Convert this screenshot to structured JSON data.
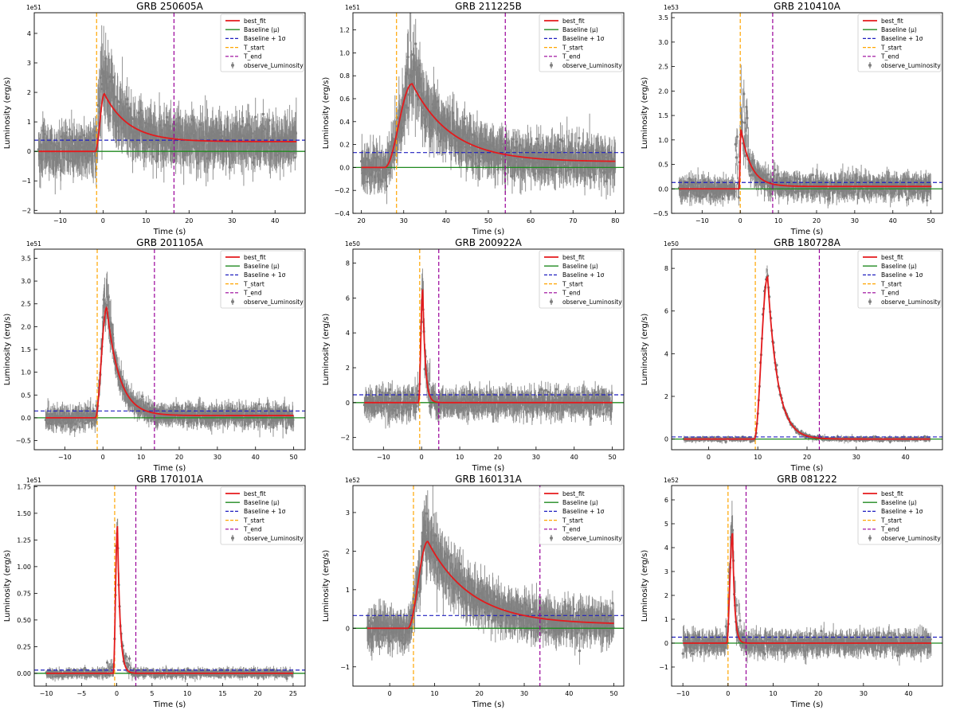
{
  "colors": {
    "best_fit": "#e41a1c",
    "baseline": "#1f8a1f",
    "baseline_sigma": "#1f1fbf",
    "t_start": "#ffa500",
    "t_end": "#990099",
    "observed": "#808080"
  },
  "legend": {
    "best_fit": "best_fit",
    "baseline": "Baseline (μ)",
    "baseline_sigma": "Baseline + 1σ",
    "t_start": "T_start",
    "t_end": "T_end",
    "observed": "observe_Luminosity"
  },
  "chart_data": [
    {
      "type": "scatter",
      "title": "GRB 250605A",
      "xlabel": "Time (s)",
      "ylabel": "Luminosity (erg/s)",
      "scale_label": "1e51",
      "xlim": [
        -16,
        47
      ],
      "ylim": [
        -2.1,
        4.7
      ],
      "xticks": [
        -10,
        0,
        10,
        20,
        30,
        40
      ],
      "yticks": [
        -2,
        -1,
        0,
        1,
        2,
        3,
        4
      ],
      "baseline": 0.0,
      "baseline_sigma": 0.38,
      "t_start": -1.5,
      "t_end": 16.5,
      "peak": 1.95,
      "t_peak": 0.3,
      "tail": 0.33,
      "decay_k": 1.0,
      "noise": 0.55,
      "data_peak": 4.4,
      "data_range": [
        -15,
        45
      ],
      "fit_start": -1.8
    },
    {
      "type": "scatter",
      "title": "GRB 211225B",
      "xlabel": "Time (s)",
      "ylabel": "Luminosity (erg/s)",
      "scale_label": "1e51",
      "xlim": [
        18,
        82
      ],
      "ylim": [
        -0.4,
        1.35
      ],
      "xticks": [
        20,
        30,
        40,
        50,
        60,
        70,
        80
      ],
      "yticks": [
        -0.4,
        -0.2,
        0.0,
        0.2,
        0.4,
        0.6,
        0.8,
        1.0,
        1.2
      ],
      "baseline": 0.0,
      "baseline_sigma": 0.13,
      "t_start": 28.3,
      "t_end": 54.0,
      "peak": 0.73,
      "t_peak": 32.0,
      "tail": 0.05,
      "decay_k": 1.2,
      "noise": 0.13,
      "data_peak": 1.22,
      "data_range": [
        20,
        80
      ],
      "fit_start": 25.5
    },
    {
      "type": "scatter",
      "title": "GRB 210410A",
      "xlabel": "Time (s)",
      "ylabel": "Luminosity (erg/s)",
      "scale_label": "1e53",
      "xlim": [
        -18,
        53
      ],
      "ylim": [
        -0.5,
        3.6
      ],
      "xticks": [
        -10,
        0,
        10,
        20,
        30,
        40,
        50
      ],
      "yticks": [
        -0.5,
        0.0,
        0.5,
        1.0,
        1.5,
        2.0,
        2.5,
        3.0,
        3.5
      ],
      "baseline": 0.0,
      "baseline_sigma": 0.13,
      "t_start": 0.0,
      "t_end": 8.5,
      "peak": 1.22,
      "t_peak": 0.2,
      "tail": 0.05,
      "decay_k": 0.9,
      "noise": 0.17,
      "data_peak": 2.95,
      "data_range": [
        -16,
        50
      ],
      "fit_start": -0.3
    },
    {
      "type": "scatter",
      "title": "GRB 201105A",
      "xlabel": "Time (s)",
      "ylabel": "Luminosity (erg/s)",
      "scale_label": "1e51",
      "xlim": [
        -18,
        53
      ],
      "ylim": [
        -0.7,
        3.7
      ],
      "xticks": [
        -10,
        0,
        10,
        20,
        30,
        40,
        50
      ],
      "yticks": [
        -0.5,
        0.0,
        0.5,
        1.0,
        1.5,
        2.0,
        2.5,
        3.0,
        3.5
      ],
      "baseline": 0.0,
      "baseline_sigma": 0.15,
      "t_start": -1.5,
      "t_end": 13.5,
      "peak": 2.42,
      "t_peak": 1.0,
      "tail": 0.05,
      "decay_k": 0.75,
      "noise": 0.17,
      "data_peak": 3.4,
      "data_range": [
        -15,
        50
      ],
      "fit_start": -2.0
    },
    {
      "type": "scatter",
      "title": "GRB 200922A",
      "xlabel": "Time (s)",
      "ylabel": "Luminosity (erg/s)",
      "scale_label": "1e50",
      "xlim": [
        -18,
        53
      ],
      "ylim": [
        -2.7,
        8.8
      ],
      "xticks": [
        -10,
        0,
        10,
        20,
        30,
        40,
        50
      ],
      "yticks": [
        -2,
        0,
        2,
        4,
        6,
        8
      ],
      "baseline": 0.0,
      "baseline_sigma": 0.45,
      "t_start": -0.5,
      "t_end": 4.5,
      "peak": 6.5,
      "t_peak": 0.3,
      "tail": 0.0,
      "decay_k": 0.45,
      "noise": 0.55,
      "data_peak": 8.2,
      "data_range": [
        -15,
        50
      ],
      "fit_start": -0.8
    },
    {
      "type": "scatter",
      "title": "GRB 180728A",
      "xlabel": "Time (s)",
      "ylabel": "Luminosity (erg/s)",
      "scale_label": "1e50",
      "xlim": [
        -7.5,
        47.5
      ],
      "ylim": [
        -0.5,
        8.9
      ],
      "xticks": [
        0,
        10,
        20,
        30,
        40
      ],
      "yticks": [
        0,
        2,
        4,
        6,
        8
      ],
      "baseline": 0.0,
      "baseline_sigma": 0.1,
      "t_start": 9.5,
      "t_end": 22.5,
      "peak": 7.6,
      "t_peak": 12.0,
      "tail": 0.0,
      "decay_k": 0.55,
      "noise": 0.08,
      "data_peak": 8.2,
      "data_range": [
        -5,
        45
      ],
      "fit_start": 9.3
    },
    {
      "type": "scatter",
      "title": "GRB 170101A",
      "xlabel": "Time (s)",
      "ylabel": "Luminosity (erg/s)",
      "scale_label": "1e51",
      "xlim": [
        -11.7,
        26.7
      ],
      "ylim": [
        -0.12,
        1.76
      ],
      "xticks": [
        -10,
        -5,
        0,
        5,
        10,
        15,
        20,
        25
      ],
      "yticks": [
        0.0,
        0.25,
        0.5,
        0.75,
        1.0,
        1.25,
        1.5,
        1.75
      ],
      "baseline": 0.0,
      "baseline_sigma": 0.03,
      "t_start": -0.3,
      "t_end": 2.7,
      "peak": 1.38,
      "t_peak": 0.1,
      "tail": 0.0,
      "decay_k": 0.4,
      "noise": 0.03,
      "data_peak": 1.55,
      "data_range": [
        -10,
        25
      ],
      "fit_start": -0.5
    },
    {
      "type": "scatter",
      "title": "GRB 160131A",
      "xlabel": "Time (s)",
      "ylabel": "Luminosity (erg/s)",
      "scale_label": "1e52",
      "xlim": [
        -8.2,
        52.2
      ],
      "ylim": [
        -1.5,
        3.7
      ],
      "xticks": [
        0,
        10,
        20,
        30,
        40,
        50
      ],
      "yticks": [
        -1,
        0,
        1,
        2,
        3
      ],
      "baseline": 0.0,
      "baseline_sigma": 0.33,
      "t_start": 5.3,
      "t_end": 33.5,
      "peak": 2.25,
      "t_peak": 8.5,
      "tail": 0.1,
      "decay_k": 1.1,
      "noise": 0.35,
      "data_peak": 3.4,
      "data_range": [
        -5,
        50
      ],
      "fit_start": 4.0
    },
    {
      "type": "scatter",
      "title": "GRB 081222",
      "xlabel": "Time (s)",
      "ylabel": "Luminosity (erg/s)",
      "scale_label": "1e52",
      "xlim": [
        -12.5,
        47.5
      ],
      "ylim": [
        -1.8,
        6.6
      ],
      "xticks": [
        -10,
        0,
        10,
        20,
        30,
        40
      ],
      "yticks": [
        -1,
        0,
        1,
        2,
        3,
        4,
        5,
        6
      ],
      "baseline": 0.0,
      "baseline_sigma": 0.25,
      "t_start": 0.0,
      "t_end": 4.0,
      "peak": 4.6,
      "t_peak": 1.0,
      "tail": 0.0,
      "decay_k": 0.45,
      "noise": 0.33,
      "data_peak": 6.0,
      "data_range": [
        -10,
        45
      ],
      "fit_start": -0.3
    }
  ]
}
